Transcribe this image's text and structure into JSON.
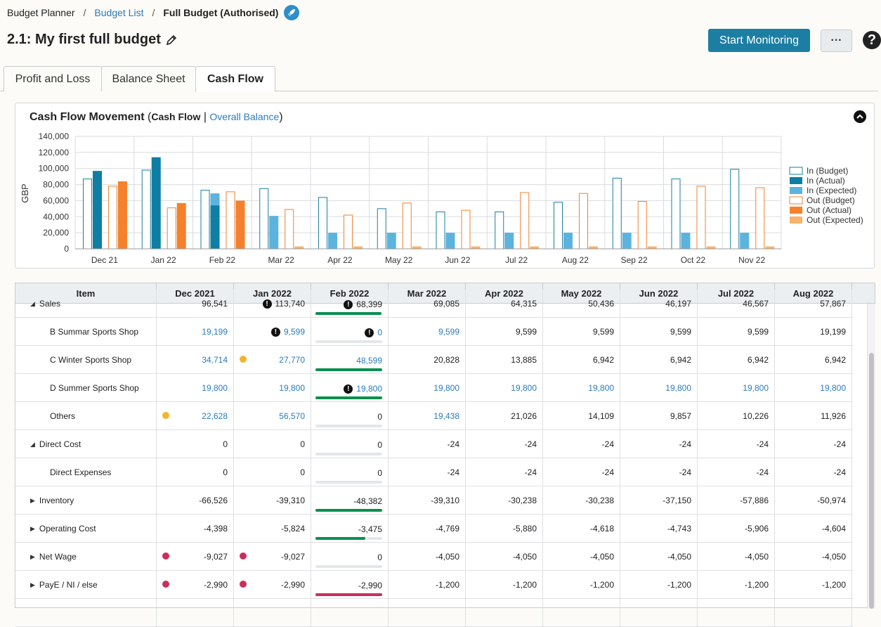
{
  "breadcrumb": {
    "root": "Budget Planner",
    "list": "Budget List",
    "current": "Full Budget (Authorised)",
    "sep": "/"
  },
  "page": {
    "title": "2.1: My first full budget"
  },
  "actions": {
    "start_monitoring": "Start Monitoring",
    "more": "···",
    "help": "?"
  },
  "tabs": [
    "Profit and Loss",
    "Balance Sheet",
    "Cash Flow"
  ],
  "active_tab": "Cash Flow",
  "chart_header": {
    "title": "Cash Flow Movement",
    "open": " (",
    "cash_flow": "Cash Flow",
    "sep": " | ",
    "overall_balance": "Overall Balance",
    "close": ")"
  },
  "chart_data": {
    "type": "bar",
    "ylabel": "GBP",
    "ylim": [
      0,
      140000
    ],
    "yticks": [
      "0",
      "20,000",
      "40,000",
      "60,000",
      "80,000",
      "100,000",
      "120,000",
      "140,000"
    ],
    "categories": [
      "Dec 21",
      "Jan 22",
      "Feb 22",
      "Mar 22",
      "Apr 22",
      "May 22",
      "Jun 22",
      "Jul 22",
      "Aug 22",
      "Sep 22",
      "Oct 22",
      "Nov 22"
    ],
    "legend_position": "right",
    "grid": true,
    "series": [
      {
        "name": "In (Budget)",
        "color": "#1a7fa0",
        "style": "outline",
        "values": [
          87000,
          98000,
          73000,
          75000,
          64000,
          50000,
          46000,
          46000,
          58000,
          88000,
          87000,
          99000
        ]
      },
      {
        "name": "In (Actual)",
        "color": "#0e7ea3",
        "style": "solid",
        "values": [
          97000,
          114000,
          54000,
          0,
          0,
          0,
          0,
          0,
          0,
          0,
          0,
          0
        ]
      },
      {
        "name": "In (Expected)",
        "color": "#5cb3dd",
        "style": "solid",
        "values": [
          0,
          0,
          69000,
          41000,
          20000,
          20000,
          20000,
          20000,
          20000,
          20000,
          20000,
          20000
        ]
      },
      {
        "name": "Out (Budget)",
        "color": "#f08030",
        "style": "outline",
        "values": [
          78000,
          51000,
          71000,
          49000,
          42000,
          57000,
          48000,
          70000,
          69000,
          59000,
          78000,
          76000
        ]
      },
      {
        "name": "Out (Actual)",
        "color": "#f5812d",
        "style": "solid",
        "values": [
          84000,
          57000,
          60000,
          0,
          0,
          0,
          0,
          0,
          0,
          0,
          0,
          0
        ]
      },
      {
        "name": "Out (Expected)",
        "color": "#f9b36a",
        "style": "solid",
        "values": [
          0,
          0,
          0,
          3000,
          3000,
          3000,
          3000,
          3000,
          3000,
          3000,
          3000,
          3000
        ]
      }
    ]
  },
  "table": {
    "columns": [
      "Item",
      "Dec 2021",
      "Jan 2022",
      "Feb 2022",
      "Mar 2022",
      "Apr 2022",
      "May 2022",
      "Jun 2022",
      "Jul 2022",
      "Aug 2022"
    ],
    "rows": [
      {
        "label": "Sales",
        "indent": 1,
        "arrow": "◢",
        "values": [
          "96,541",
          "113,740",
          "68,399",
          "69,085",
          "64,315",
          "50,436",
          "46,197",
          "46,567",
          "57,867"
        ],
        "links": [],
        "warn": [
          1,
          2
        ],
        "dots": {},
        "progress": {
          "value": 0.99,
          "color": "#0a8f4f"
        }
      },
      {
        "label": "B Summar Sports Shop",
        "indent": 2,
        "arrow": "",
        "values": [
          "19,199",
          "9,599",
          "0",
          "9,599",
          "9,599",
          "9,599",
          "9,599",
          "9,599",
          "19,199"
        ],
        "links": [
          0,
          1,
          2,
          3
        ],
        "warn": [
          1,
          2
        ],
        "dots": {},
        "progress": {
          "value": 0,
          "color": "#0a8f4f"
        }
      },
      {
        "label": "C Winter Sports Shop",
        "indent": 2,
        "arrow": "",
        "values": [
          "34,714",
          "27,770",
          "48,599",
          "20,828",
          "13,885",
          "6,942",
          "6,942",
          "6,942",
          "6,942"
        ],
        "links": [
          0,
          1,
          2
        ],
        "warn": [],
        "dots": {
          "1": "#f4b42e"
        },
        "progress": {
          "value": 1,
          "color": "#0a8f4f"
        }
      },
      {
        "label": "D Summer Sports Shop",
        "indent": 2,
        "arrow": "",
        "values": [
          "19,800",
          "19,800",
          "19,800",
          "19,800",
          "19,800",
          "19,800",
          "19,800",
          "19,800",
          "19,800"
        ],
        "links": [
          0,
          1,
          2,
          3,
          4,
          5,
          6,
          7,
          8
        ],
        "warn": [
          2
        ],
        "dots": {},
        "progress": {
          "value": 1,
          "color": "#0a8f4f"
        }
      },
      {
        "label": "Others",
        "indent": 2,
        "arrow": "",
        "values": [
          "22,628",
          "56,570",
          "0",
          "19,438",
          "21,026",
          "14,109",
          "9,857",
          "10,226",
          "11,926"
        ],
        "links": [
          0,
          1,
          3
        ],
        "warn": [],
        "dots": {
          "0": "#f4b42e"
        },
        "progress": {
          "value": 0,
          "color": "#0a8f4f"
        }
      },
      {
        "label": "Direct Cost",
        "indent": 1,
        "arrow": "◢",
        "values": [
          "0",
          "0",
          "0",
          "-24",
          "-24",
          "-24",
          "-24",
          "-24",
          "-24"
        ],
        "links": [],
        "warn": [],
        "dots": {},
        "progress": {
          "value": 0,
          "color": "#0a8f4f"
        }
      },
      {
        "label": "Direct Expenses",
        "indent": 2,
        "arrow": "",
        "values": [
          "0",
          "0",
          "0",
          "-24",
          "-24",
          "-24",
          "-24",
          "-24",
          "-24"
        ],
        "links": [],
        "warn": [],
        "dots": {},
        "progress": {
          "value": 0,
          "color": "#0a8f4f"
        }
      },
      {
        "label": "Inventory",
        "indent": 1,
        "arrow": "▶",
        "values": [
          "-66,526",
          "-39,310",
          "-48,382",
          "-39,310",
          "-30,238",
          "-30,238",
          "-37,150",
          "-57,886",
          "-50,974"
        ],
        "links": [],
        "warn": [],
        "dots": {},
        "progress": {
          "value": 1,
          "color": "#0a8f4f"
        }
      },
      {
        "label": "Operating Cost",
        "indent": 1,
        "arrow": "▶",
        "values": [
          "-4,398",
          "-5,824",
          "-3,475",
          "-4,769",
          "-5,880",
          "-4,618",
          "-4,743",
          "-5,906",
          "-4,604"
        ],
        "links": [],
        "warn": [],
        "dots": {},
        "progress": {
          "value": 0.75,
          "color": "#0a8f4f"
        }
      },
      {
        "label": "Net Wage",
        "indent": 1,
        "arrow": "▶",
        "values": [
          "-9,027",
          "-9,027",
          "0",
          "-4,050",
          "-4,050",
          "-4,050",
          "-4,050",
          "-4,050",
          "-4,050"
        ],
        "links": [],
        "warn": [],
        "dots": {
          "0": "#cc2e5c",
          "1": "#cc2e5c"
        },
        "progress": {
          "value": 0,
          "color": "#0a8f4f"
        }
      },
      {
        "label": "PayE / NI / else",
        "indent": 1,
        "arrow": "▶",
        "values": [
          "-2,990",
          "-2,990",
          "-2,990",
          "-1,200",
          "-1,200",
          "-1,200",
          "-1,200",
          "-1,200",
          "-1,200"
        ],
        "links": [],
        "warn": [],
        "dots": {
          "0": "#cc2e5c",
          "1": "#cc2e5c"
        },
        "progress": {
          "value": 1,
          "color": "#cc2e5c"
        }
      },
      {
        "label": "",
        "indent": 1,
        "arrow": "",
        "values": [
          "",
          "",
          "",
          "",
          "",
          "",
          "",
          "",
          ""
        ],
        "links": [],
        "warn": [],
        "dots": {},
        "progress": null
      }
    ]
  }
}
